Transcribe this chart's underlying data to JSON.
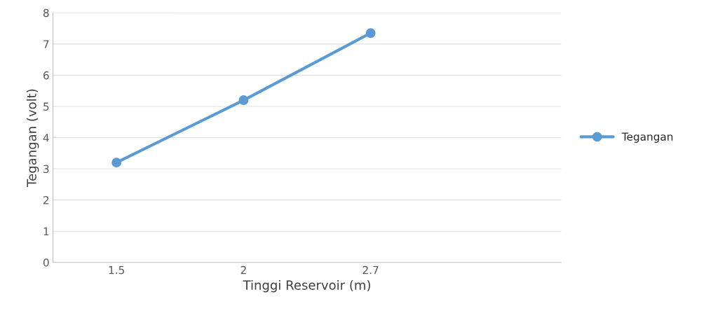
{
  "chart_data": {
    "type": "line",
    "xlabel": "Tinggi Reservoir (m)",
    "ylabel": "Tegangan (volt)",
    "categories": [
      "1.5",
      "2",
      "2.7",
      null
    ],
    "series": [
      {
        "name": "Tegangan",
        "color": "#5b9bd5",
        "values": [
          3.2,
          5.2,
          7.35,
          null
        ]
      }
    ],
    "ylim": [
      0,
      8
    ],
    "yticks": [
      0,
      1,
      2,
      3,
      4,
      5,
      6,
      7,
      8
    ],
    "grid": "y",
    "legend": "right",
    "marker": "circle",
    "line_style": "solid"
  }
}
